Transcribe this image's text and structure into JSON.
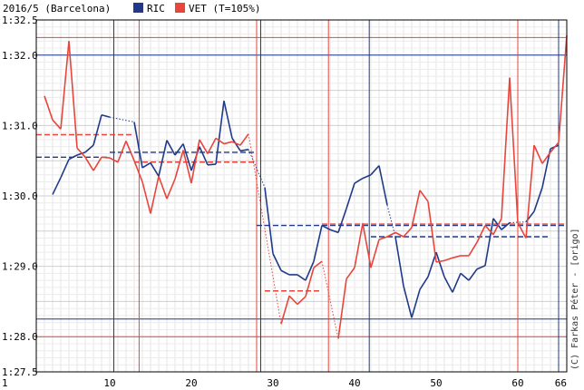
{
  "chart_data": {
    "type": "line",
    "title": "2016/5 (Barcelona)",
    "xlim": [
      1,
      66
    ],
    "ylim": [
      87.5,
      92.5
    ],
    "x_ticks": [
      1,
      10,
      20,
      30,
      40,
      50,
      60,
      66
    ],
    "y_ticks": [
      87.5,
      88.0,
      89.0,
      90.0,
      91.0,
      92.0,
      92.5
    ],
    "y_tick_labels": [
      "1:27.5",
      "1:28.0",
      "1:29.0",
      "1:30.0",
      "1:31.0",
      "1:32.0",
      "1:32.5"
    ],
    "grid": true,
    "legend_placement": "top-left",
    "credit": "(C) Farkas Péter - [origo]",
    "series": [
      {
        "name": "RIC",
        "color": "#1f3a8a",
        "points": [
          [
            3,
            90.02
          ],
          [
            4,
            90.26
          ],
          [
            5,
            90.52
          ],
          [
            6,
            90.58
          ],
          [
            7,
            90.62
          ],
          [
            8,
            90.72
          ],
          [
            9,
            91.15
          ],
          [
            10,
            91.12
          ],
          [
            13,
            91.05
          ],
          [
            14,
            90.4
          ],
          [
            15,
            90.47
          ],
          [
            16,
            90.28
          ],
          [
            17,
            90.79
          ],
          [
            18,
            90.58
          ],
          [
            19,
            90.74
          ],
          [
            20,
            90.36
          ],
          [
            21,
            90.7
          ],
          [
            22,
            90.44
          ],
          [
            23,
            90.45
          ],
          [
            24,
            91.35
          ],
          [
            25,
            90.82
          ],
          [
            26,
            90.64
          ],
          [
            27,
            90.66
          ],
          [
            29,
            90.12
          ],
          [
            30,
            89.18
          ],
          [
            31,
            88.94
          ],
          [
            32,
            88.88
          ],
          [
            33,
            88.88
          ],
          [
            34,
            88.8
          ],
          [
            35,
            89.07
          ],
          [
            36,
            89.58
          ],
          [
            37,
            89.52
          ],
          [
            38,
            89.48
          ],
          [
            39,
            89.82
          ],
          [
            40,
            90.18
          ],
          [
            41,
            90.25
          ],
          [
            42,
            90.3
          ],
          [
            43,
            90.43
          ],
          [
            44,
            89.87
          ],
          [
            45,
            89.42
          ],
          [
            46,
            88.72
          ],
          [
            47,
            88.27
          ],
          [
            48,
            88.67
          ],
          [
            49,
            88.85
          ],
          [
            50,
            89.2
          ],
          [
            51,
            88.85
          ],
          [
            52,
            88.63
          ],
          [
            53,
            88.9
          ],
          [
            54,
            88.8
          ],
          [
            55,
            88.96
          ],
          [
            56,
            89.01
          ],
          [
            57,
            89.68
          ],
          [
            58,
            89.52
          ],
          [
            59,
            89.62
          ],
          [
            61,
            89.63
          ],
          [
            62,
            89.78
          ],
          [
            63,
            90.12
          ],
          [
            64,
            90.67
          ],
          [
            65,
            90.72
          ]
        ],
        "dotted_segments": [
          [
            10,
            13
          ],
          [
            27,
            29
          ],
          [
            44,
            45
          ],
          [
            59,
            61
          ]
        ],
        "avg_lines": [
          {
            "from": 1,
            "to": 10,
            "y": 90.55
          },
          {
            "from": 10,
            "to": 28,
            "y": 90.62
          },
          {
            "from": 28,
            "to": 66,
            "y": 89.58
          },
          {
            "from": 42,
            "to": 64,
            "y": 89.42
          }
        ],
        "pit_laps": [
          10.5,
          28.5,
          41.8,
          65.0
        ],
        "ref_lines": [
          92.0,
          88.25
        ]
      },
      {
        "name": "VET",
        "color": "#e8453c",
        "points": [
          [
            2,
            91.42
          ],
          [
            3,
            91.08
          ],
          [
            4,
            90.95
          ],
          [
            5,
            92.2
          ],
          [
            6,
            90.68
          ],
          [
            7,
            90.55
          ],
          [
            8,
            90.36
          ],
          [
            9,
            90.55
          ],
          [
            10,
            90.54
          ],
          [
            11,
            90.48
          ],
          [
            12,
            90.78
          ],
          [
            13,
            90.5
          ],
          [
            14,
            90.2
          ],
          [
            15,
            89.75
          ],
          [
            16,
            90.28
          ],
          [
            17,
            89.96
          ],
          [
            18,
            90.24
          ],
          [
            19,
            90.65
          ],
          [
            20,
            90.18
          ],
          [
            21,
            90.8
          ],
          [
            22,
            90.6
          ],
          [
            23,
            90.82
          ],
          [
            24,
            90.74
          ],
          [
            25,
            90.77
          ],
          [
            26,
            90.72
          ],
          [
            27,
            90.88
          ],
          [
            31,
            88.18
          ],
          [
            32,
            88.58
          ],
          [
            33,
            88.46
          ],
          [
            34,
            88.57
          ],
          [
            35,
            88.98
          ],
          [
            36,
            89.07
          ],
          [
            38,
            87.97
          ],
          [
            39,
            88.82
          ],
          [
            40,
            88.98
          ],
          [
            41,
            89.61
          ],
          [
            42,
            88.98
          ],
          [
            43,
            89.38
          ],
          [
            44,
            89.42
          ],
          [
            45,
            89.48
          ],
          [
            46,
            89.42
          ],
          [
            47,
            89.55
          ],
          [
            48,
            90.08
          ],
          [
            49,
            89.92
          ],
          [
            50,
            89.06
          ],
          [
            51,
            89.08
          ],
          [
            52,
            89.12
          ],
          [
            53,
            89.15
          ],
          [
            54,
            89.15
          ],
          [
            55,
            89.34
          ],
          [
            56,
            89.58
          ],
          [
            57,
            89.45
          ],
          [
            58,
            89.68
          ],
          [
            59,
            91.68
          ],
          [
            60,
            89.62
          ],
          [
            61,
            89.4
          ],
          [
            62,
            90.72
          ],
          [
            63,
            90.46
          ],
          [
            64,
            90.62
          ],
          [
            65,
            90.76
          ],
          [
            66,
            92.28
          ]
        ],
        "dotted_segments": [
          [
            12,
            15
          ],
          [
            27,
            31
          ],
          [
            36,
            38
          ]
        ],
        "avg_lines": [
          {
            "from": 1,
            "to": 13,
            "y": 90.87
          },
          {
            "from": 13,
            "to": 28,
            "y": 90.48
          },
          {
            "from": 29,
            "to": 36,
            "y": 88.65
          },
          {
            "from": 36,
            "to": 66,
            "y": 89.6
          }
        ],
        "pit_laps": [
          13.6,
          28.0,
          36.8,
          60.0
        ],
        "ref_lines": [
          92.25,
          88.0
        ]
      }
    ]
  },
  "legend": {
    "ric_label": "RIC",
    "vet_label": "VET (T=105%)"
  }
}
